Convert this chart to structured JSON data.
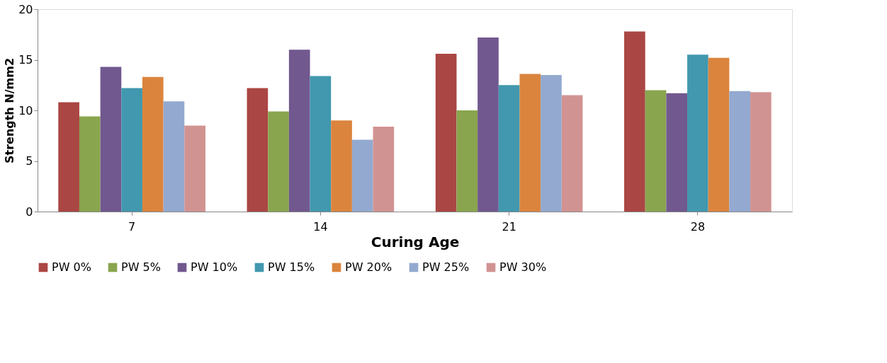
{
  "chart_data": {
    "type": "bar",
    "xlabel": "Curing Age",
    "ylabel": "Strength N/mm2",
    "categories": [
      "7",
      "14",
      "21",
      "28"
    ],
    "series": [
      {
        "name": "PW 0%",
        "color": "#aa4643",
        "values": [
          10.8,
          12.2,
          15.6,
          17.8
        ]
      },
      {
        "name": "PW 5%",
        "color": "#89a54e",
        "values": [
          9.4,
          9.9,
          10.0,
          12.0
        ]
      },
      {
        "name": "PW 10%",
        "color": "#71588f",
        "values": [
          14.3,
          16.0,
          17.2,
          11.7
        ]
      },
      {
        "name": "PW 15%",
        "color": "#4198af",
        "values": [
          12.2,
          13.4,
          12.5,
          15.5
        ]
      },
      {
        "name": "PW 20%",
        "color": "#db843d",
        "values": [
          13.3,
          9.0,
          13.6,
          15.2
        ]
      },
      {
        "name": "PW 25%",
        "color": "#93a9cf",
        "values": [
          10.9,
          7.1,
          13.5,
          11.9
        ]
      },
      {
        "name": "PW 30%",
        "color": "#d19392",
        "values": [
          8.5,
          8.4,
          11.5,
          11.8
        ]
      }
    ],
    "ylim": [
      0,
      20
    ],
    "yticks": [
      0,
      5,
      10,
      15,
      20
    ],
    "grid": false,
    "legend": "bottom"
  }
}
